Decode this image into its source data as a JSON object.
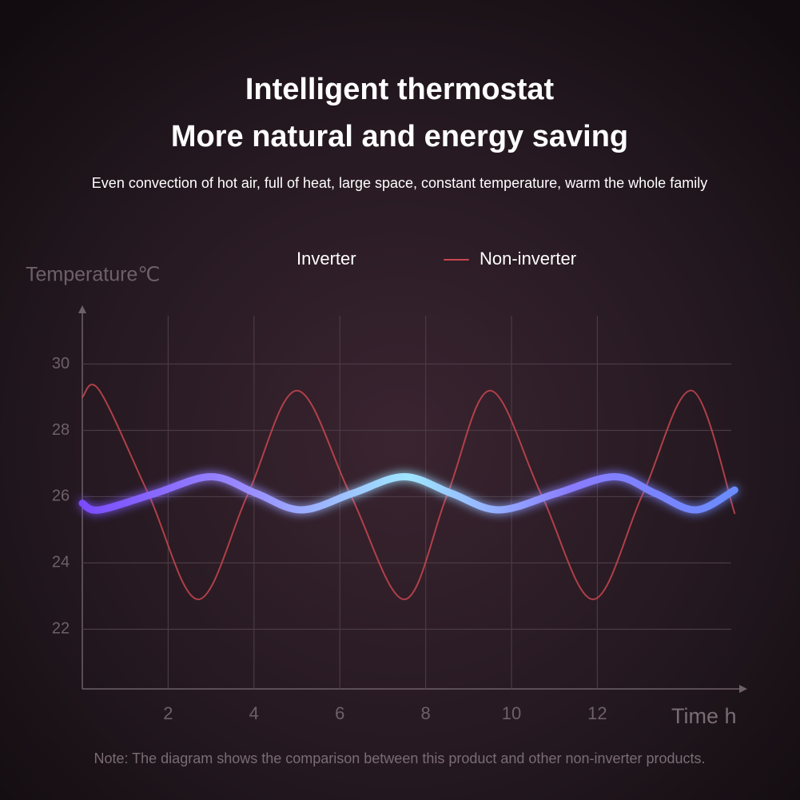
{
  "chart_data": {
    "type": "line",
    "title": "Intelligent thermostat",
    "subtitle": "More natural and energy saving",
    "description": "Even convection of hot air, full of heat, large space, constant temperature, warm the whole family",
    "y_label": "Temperature℃",
    "x_label": "Time h",
    "note": "Note: The diagram shows the comparison between this product and other non-inverter products.",
    "xlim": [
      0,
      15.4
    ],
    "xticks": [
      2,
      4,
      6,
      8,
      10,
      12
    ],
    "ylim": [
      20.2,
      31.7
    ],
    "yticks": [
      22,
      24,
      26,
      28,
      30
    ],
    "grid": true,
    "series": [
      {
        "name": "Inverter",
        "color": "#8fb4ff",
        "x": [
          0,
          0.4,
          1.7,
          3.0,
          4.05,
          5.1,
          6.3,
          7.5,
          8.6,
          9.7,
          11.05,
          12.4,
          13.35,
          14.3,
          15.2
        ],
        "values": [
          25.8,
          25.6,
          26.1,
          26.6,
          26.1,
          25.6,
          26.1,
          26.6,
          26.1,
          25.6,
          26.1,
          26.6,
          26.1,
          25.6,
          26.2
        ]
      },
      {
        "name": "Non-inverter",
        "color": "#c8474f",
        "x": [
          0,
          0.4,
          1.55,
          2.7,
          3.85,
          5.0,
          6.25,
          7.5,
          8.5,
          9.5,
          10.7,
          11.9,
          13.05,
          14.2,
          15.2
        ],
        "values": [
          29.0,
          29.2,
          26.05,
          22.9,
          26.05,
          29.2,
          26.05,
          22.9,
          26.05,
          29.2,
          26.05,
          22.9,
          26.05,
          29.2,
          25.5
        ]
      }
    ]
  }
}
